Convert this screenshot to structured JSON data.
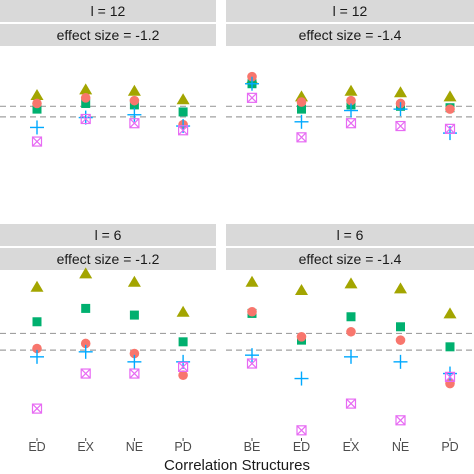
{
  "chart_data": {
    "type": "scatter",
    "xlabel": "Correlation Structures",
    "ylabel": "",
    "grid": false,
    "legend": "none",
    "marker_colors": {
      "triangle": "#a3a500",
      "square": "#00b06f",
      "circle": "#f8766d",
      "plus": "#00a9ff",
      "boxed_x": "#e76bf3"
    },
    "panels": [
      {
        "strip_top": "l = 12",
        "strip_bottom": "effect size = -1.2",
        "categories": [
          "ED",
          "EX",
          "NE",
          "PD"
        ],
        "show_x_ticks": false,
        "reference_lines": [
          0.7,
          0.625
        ],
        "ylim": [
          0,
          1
        ],
        "series": [
          {
            "marker": "triangle",
            "values": [
              0.78,
              0.82,
              0.81,
              0.75
            ]
          },
          {
            "marker": "square",
            "values": [
              0.68,
              0.72,
              0.71,
              0.66
            ]
          },
          {
            "marker": "circle",
            "values": [
              0.72,
              0.76,
              0.74,
              0.57
            ]
          },
          {
            "marker": "plus",
            "values": [
              0.55,
              0.62,
              0.64,
              0.56
            ]
          },
          {
            "marker": "boxed_x",
            "values": [
              0.45,
              0.61,
              0.58,
              0.53
            ]
          }
        ]
      },
      {
        "strip_top": "l = 12",
        "strip_bottom": "effect size = -1.4",
        "categories": [
          "BE",
          "ED",
          "EX",
          "NE",
          "PD"
        ],
        "show_x_ticks": false,
        "reference_lines": [
          0.7,
          0.625
        ],
        "ylim": [
          0,
          1
        ],
        "series": [
          {
            "marker": "triangle",
            "values": [
              0.89,
              0.77,
              0.81,
              0.8,
              0.77
            ]
          },
          {
            "marker": "square",
            "values": [
              0.86,
              0.68,
              0.71,
              0.7,
              0.69
            ]
          },
          {
            "marker": "circle",
            "values": [
              0.91,
              0.73,
              0.74,
              0.72,
              0.68
            ]
          },
          {
            "marker": "plus",
            "values": [
              0.86,
              0.59,
              0.67,
              0.68,
              0.51
            ]
          },
          {
            "marker": "boxed_x",
            "values": [
              0.76,
              0.48,
              0.58,
              0.56,
              0.54
            ]
          }
        ]
      },
      {
        "strip_top": "l = 6",
        "strip_bottom": "effect size = -1.2",
        "categories": [
          "ED",
          "EX",
          "NE",
          "PD"
        ],
        "show_x_ticks": true,
        "reference_lines": [
          0.62,
          0.52
        ],
        "ylim": [
          0,
          1
        ],
        "series": [
          {
            "marker": "triangle",
            "values": [
              0.9,
              0.98,
              0.93,
              0.75
            ]
          },
          {
            "marker": "square",
            "values": [
              0.69,
              0.77,
              0.73,
              0.57
            ]
          },
          {
            "marker": "circle",
            "values": [
              0.53,
              0.56,
              0.5,
              0.37
            ]
          },
          {
            "marker": "plus",
            "values": [
              0.48,
              0.51,
              0.45,
              0.45
            ]
          },
          {
            "marker": "boxed_x",
            "values": [
              0.17,
              0.38,
              0.38,
              0.42
            ]
          }
        ]
      },
      {
        "strip_top": "l = 6",
        "strip_bottom": "effect size = -1.4",
        "categories": [
          "BE",
          "ED",
          "EX",
          "NE",
          "PD"
        ],
        "show_x_ticks": true,
        "reference_lines": [
          0.62,
          0.52
        ],
        "ylim": [
          0,
          1
        ],
        "series": [
          {
            "marker": "triangle",
            "values": [
              0.93,
              0.88,
              0.92,
              0.89,
              0.74
            ]
          },
          {
            "marker": "square",
            "values": [
              0.74,
              0.58,
              0.72,
              0.66,
              0.54
            ]
          },
          {
            "marker": "circle",
            "values": [
              0.75,
              0.6,
              0.63,
              0.58,
              0.32
            ]
          },
          {
            "marker": "plus",
            "values": [
              0.49,
              0.35,
              0.48,
              0.45,
              0.38
            ]
          },
          {
            "marker": "boxed_x",
            "values": [
              0.44,
              0.04,
              0.2,
              0.1,
              0.36
            ]
          }
        ]
      }
    ]
  }
}
